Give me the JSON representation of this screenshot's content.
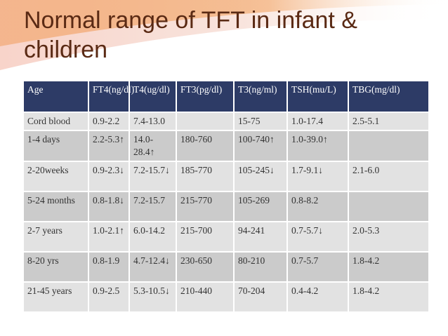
{
  "slide": {
    "title": "Normal range of TFT in infant & children"
  },
  "table": {
    "headers": [
      "Age",
      "FT4(ng/dl)",
      "T4(ug/dl)",
      "FT3(pg/dl)",
      "T3(ng/ml)",
      "TSH(mu/L)",
      "TBG(mg/dl)"
    ],
    "rows": [
      [
        "Cord blood",
        "0.9-2.2",
        "7.4-13.0",
        "",
        "15-75",
        "1.0-17.4",
        "2.5-5.1"
      ],
      [
        "1-4 days",
        "2.2-5.3↑",
        "14.0-28.4↑",
        "180-760",
        "100-740↑",
        "1.0-39.0↑",
        ""
      ],
      [
        "2-20weeks",
        "0.9-2.3↓",
        "7.2-15.7↓",
        "185-770",
        "105-245↓",
        "1.7-9.1↓",
        "2.1-6.0"
      ],
      [
        "5-24 months",
        "0.8-1.8↓",
        "7.2-15.7",
        "215-770",
        "105-269",
        "0.8-8.2",
        ""
      ],
      [
        "2-7 years",
        "1.0-2.1↑",
        "6.0-14.2",
        "215-700",
        "94-241",
        "0.7-5.7↓",
        "2.0-5.3"
      ],
      [
        "8-20 yrs",
        "0.8-1.9",
        "4.7-12.4↓",
        "230-650",
        "80-210",
        "0.7-5.7",
        "1.8-4.2"
      ],
      [
        "21-45 years",
        "0.9-2.5",
        "5.3-10.5↓",
        "210-440",
        "70-204",
        "0.4-4.2",
        "1.8-4.2"
      ]
    ]
  },
  "colors": {
    "header_bg": "#2d3b66",
    "row_bg": "#e2e2e2",
    "row_alt_bg": "#cbcbcb",
    "title_color": "#5a2a14",
    "swoosh_orange": "#f2a05a",
    "swoosh_pink": "#f7cfc4"
  }
}
